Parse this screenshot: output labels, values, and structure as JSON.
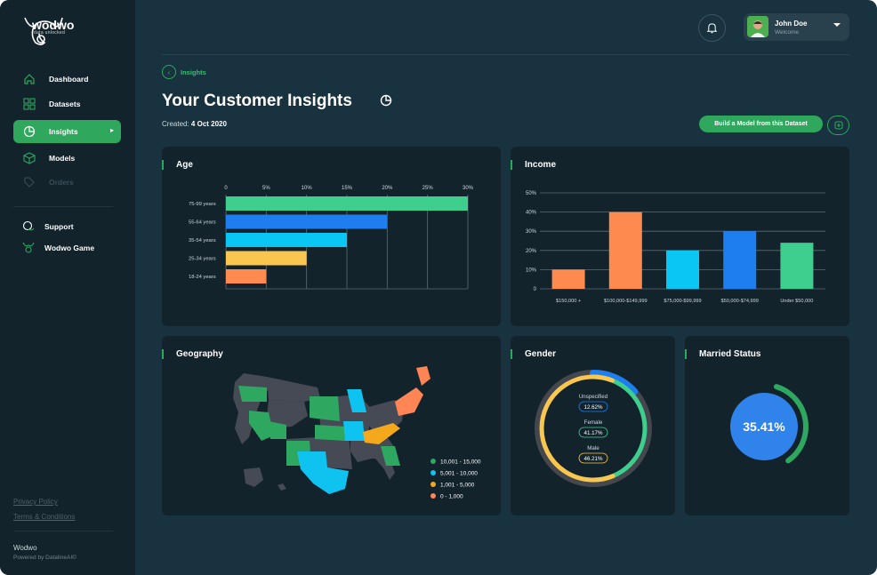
{
  "brand": {
    "name": "wodwo",
    "tagline": "data unlocked"
  },
  "sidebar": {
    "items": [
      {
        "label": "Dashboard"
      },
      {
        "label": "Datasets"
      },
      {
        "label": "Insights"
      },
      {
        "label": "Models"
      },
      {
        "label": "Orders"
      }
    ],
    "secondary": [
      {
        "label": "Support"
      },
      {
        "label": "Wodwo Game"
      }
    ],
    "links": {
      "privacy": "Privacy Policy",
      "terms": "Terms & Conditions"
    },
    "footer": {
      "name": "Wodwo",
      "powered": "Powered by DatalineAI©"
    }
  },
  "header": {
    "user_name": "John Doe",
    "user_sub": "Welcome"
  },
  "page": {
    "breadcrumb": "Insights",
    "title": "Your Customer Insights",
    "created_label": "Created:",
    "created_date": "4 Oct 2020",
    "build_button": "Build a Model from this Dataset"
  },
  "colors": {
    "green": "#3ecf8e",
    "blue": "#1e7ef0",
    "cyan": "#09c6f5",
    "yellow": "#f9c74f",
    "orange": "#ff8a4f",
    "map_green": "#2ea861",
    "map_gray": "#454a55",
    "map_cyan": "#0fc3f0",
    "map_orange": "#ff8555",
    "map_yellow": "#f4a81c"
  },
  "cards": {
    "age": "Age",
    "income": "Income",
    "geography": "Geography",
    "gender": "Gender",
    "married": "Married Status"
  },
  "chart_data": [
    {
      "type": "bar",
      "orientation": "horizontal",
      "title": "Age",
      "categories": [
        "75-99 years",
        "55-64 years",
        "35-54 years",
        "25-34 years",
        "18-24 years"
      ],
      "values": [
        30,
        20,
        15,
        10,
        5
      ],
      "xticks": [
        "0",
        "5%",
        "10%",
        "15%",
        "20%",
        "25%",
        "30%"
      ],
      "xlim": [
        0,
        30
      ]
    },
    {
      "type": "bar",
      "title": "Income",
      "categories": [
        "$150,000 +",
        "$100,000-$149,999",
        "$75,000-$99,999",
        "$50,000-$74,999",
        "Under $50,000"
      ],
      "values": [
        10,
        40,
        20,
        30,
        24
      ],
      "yticks": [
        "0",
        "10%",
        "20%",
        "30%",
        "40%",
        "50%"
      ],
      "ylim": [
        0,
        50
      ]
    },
    {
      "type": "pie",
      "title": "Gender",
      "labels": [
        "Unspecified",
        "Female",
        "Male"
      ],
      "display_values": [
        "12.62%",
        "41.17%",
        "46.21%"
      ],
      "values": [
        12.62,
        41.17,
        46.21
      ]
    },
    {
      "type": "pie",
      "title": "Married Status",
      "display_value": "35.41%",
      "value": 35.41
    }
  ],
  "geography": {
    "legend": [
      "10,001 - 15,000",
      "5,001 - 10,000",
      "1,001 - 5,000",
      "0 - 1,000"
    ]
  }
}
